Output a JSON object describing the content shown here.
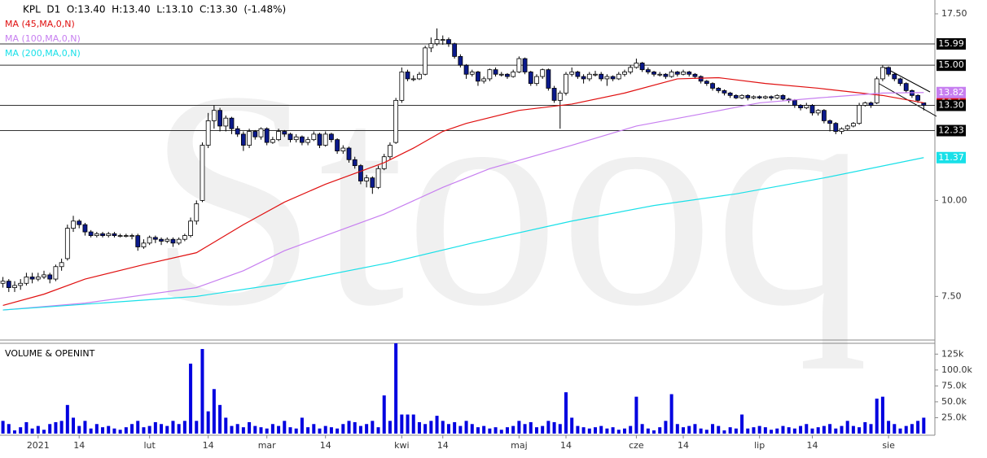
{
  "chart_data": [
    {
      "type": "candlestick",
      "title": "KPL  D1  O:13.40  H:13.40  L:13.10  C:13.30  (-1.48%)",
      "watermark": "Stooq",
      "log_scale": true,
      "color_up": "#ffffff",
      "color_down": "#0b1a8c",
      "color_outline": "#000000",
      "ylim": [
        6.58,
        18.24
      ],
      "yticks": [
        {
          "value": 7.5,
          "label": "7.50"
        },
        {
          "value": 10,
          "label": "10.00"
        },
        {
          "value": 17.5,
          "label": "17.50"
        }
      ],
      "levels": [
        15.99,
        {
          "value": 15,
          "label": "15.00"
        },
        {
          "value": 13.3,
          "label": "13.30"
        },
        12.33
      ],
      "categories": [
        null,
        null,
        null,
        null,
        null,
        null,
        "2021",
        null,
        null,
        null,
        null,
        null,
        null,
        "14",
        null,
        null,
        null,
        null,
        null,
        null,
        null,
        null,
        null,
        null,
        null,
        "lut",
        null,
        null,
        null,
        null,
        null,
        null,
        null,
        null,
        null,
        "14",
        null,
        null,
        null,
        null,
        null,
        null,
        null,
        null,
        null,
        "mar",
        null,
        null,
        null,
        null,
        null,
        null,
        null,
        null,
        null,
        "14",
        null,
        null,
        null,
        null,
        null,
        null,
        null,
        null,
        null,
        null,
        null,
        null,
        "kwi",
        null,
        null,
        null,
        null,
        null,
        null,
        "14",
        null,
        null,
        null,
        null,
        null,
        null,
        null,
        null,
        null,
        null,
        null,
        null,
        "maj",
        null,
        null,
        null,
        null,
        null,
        null,
        null,
        "14",
        null,
        null,
        null,
        null,
        null,
        null,
        null,
        null,
        null,
        null,
        null,
        "cze",
        null,
        null,
        null,
        null,
        null,
        null,
        null,
        "14",
        null,
        null,
        null,
        null,
        null,
        null,
        null,
        null,
        null,
        null,
        null,
        null,
        "lip",
        null,
        null,
        null,
        null,
        null,
        null,
        null,
        null,
        "14",
        null,
        null,
        null,
        null,
        null,
        null,
        null,
        null,
        null,
        null,
        null,
        null,
        "sie",
        null,
        null,
        null,
        null,
        null,
        null
      ],
      "open": [
        7.8,
        7.85,
        7.7,
        7.75,
        7.8,
        7.95,
        7.9,
        7.95,
        8,
        7.9,
        8.2,
        8.4,
        9.2,
        9.4,
        9.3,
        9.1,
        9,
        9.05,
        9,
        9.05,
        9,
        9,
        9,
        9,
        8.7,
        8.8,
        8.95,
        8.9,
        8.85,
        8.9,
        8.8,
        8.9,
        9,
        9.4,
        10,
        11.8,
        12.7,
        13.1,
        12.5,
        12.8,
        12.4,
        12.2,
        11.8,
        12.3,
        12.1,
        12.4,
        11.9,
        12,
        12.3,
        12.2,
        12,
        12.1,
        11.9,
        12,
        12.2,
        11.8,
        12.2,
        12,
        11.6,
        11.7,
        11.3,
        11.1,
        10.6,
        10.7,
        10.4,
        11,
        11.4,
        11.9,
        13.5,
        14.7,
        14.4,
        14.4,
        14.6,
        15.8,
        16,
        16.2,
        16.2,
        16,
        15.4,
        15,
        14.6,
        14.7,
        14.3,
        14.4,
        14.8,
        14.6,
        14.6,
        14.5,
        14.7,
        15.3,
        14.7,
        14.2,
        14.5,
        14.8,
        14,
        13.5,
        13.8,
        14.6,
        14.7,
        14.5,
        14.4,
        14.6,
        14.6,
        14.4,
        14.5,
        14.4,
        14.6,
        14.7,
        14.9,
        15.1,
        14.8,
        14.7,
        14.6,
        14.6,
        14.5,
        14.7,
        14.6,
        14.7,
        14.6,
        14.5,
        14.3,
        14.2,
        14,
        13.9,
        13.8,
        13.7,
        13.6,
        13.7,
        13.6,
        13.65,
        13.6,
        13.65,
        13.6,
        13.7,
        13.55,
        13.5,
        13.3,
        13.2,
        13.3,
        13,
        13.1,
        12.7,
        12.6,
        12.3,
        12.4,
        12.5,
        12.6,
        13.3,
        13.4,
        13.4,
        14.4,
        14.9,
        14.6,
        14.4,
        14.2,
        13.9,
        13.7,
        13.4
      ],
      "high": [
        7.95,
        7.9,
        7.85,
        7.9,
        8.05,
        8.05,
        8.05,
        8.1,
        8.05,
        8.25,
        8.4,
        9.3,
        9.55,
        9.45,
        9.35,
        9.15,
        9.1,
        9.1,
        9.1,
        9.1,
        9.05,
        9.05,
        9.05,
        9.05,
        8.9,
        9,
        9,
        8.95,
        8.95,
        8.95,
        8.95,
        9.05,
        9.5,
        10,
        11.9,
        13,
        13.3,
        13.2,
        12.9,
        12.85,
        12.5,
        12.3,
        12.4,
        12.35,
        12.45,
        12.45,
        12.1,
        12.4,
        12.35,
        12.25,
        12.2,
        12.15,
        12.1,
        12.3,
        12.25,
        12.3,
        12.25,
        12.05,
        11.8,
        11.75,
        11.4,
        11.15,
        10.8,
        10.75,
        11.1,
        11.5,
        11.9,
        13.6,
        14.9,
        14.8,
        14.55,
        14.7,
        15.9,
        16.3,
        16.75,
        16.4,
        16.3,
        16.05,
        15.5,
        15.05,
        14.8,
        14.75,
        14.5,
        14.85,
        14.9,
        14.7,
        14.65,
        14.8,
        15.4,
        15.35,
        14.75,
        14.6,
        14.85,
        14.85,
        14.1,
        13.9,
        14.7,
        14.9,
        14.75,
        14.6,
        14.7,
        14.75,
        14.7,
        14.6,
        14.55,
        14.7,
        14.8,
        15,
        15.3,
        15.15,
        14.9,
        14.75,
        14.7,
        14.65,
        14.8,
        14.75,
        14.8,
        14.75,
        14.65,
        14.55,
        14.35,
        14.25,
        14.05,
        13.95,
        13.85,
        13.75,
        13.75,
        13.75,
        13.7,
        13.7,
        13.7,
        13.7,
        13.75,
        13.75,
        13.6,
        13.55,
        13.35,
        13.4,
        13.35,
        13.15,
        13.15,
        12.75,
        12.65,
        12.45,
        12.55,
        12.65,
        13.4,
        13.45,
        13.45,
        14.5,
        15,
        14.95,
        14.65,
        14.45,
        14.25,
        13.95,
        13.75,
        13.4
      ],
      "low": [
        7.7,
        7.6,
        7.6,
        7.65,
        7.75,
        7.8,
        7.85,
        7.9,
        7.8,
        7.85,
        8.1,
        8.35,
        9.1,
        9.2,
        9,
        8.95,
        8.95,
        8.95,
        8.95,
        8.95,
        8.95,
        8.95,
        8.9,
        8.6,
        8.65,
        8.75,
        8.8,
        8.75,
        8.8,
        8.7,
        8.75,
        8.85,
        8.95,
        9.3,
        9.95,
        11.7,
        12.4,
        12.3,
        12.3,
        12.2,
        12.1,
        11.6,
        11.7,
        12,
        12,
        11.8,
        11.85,
        11.95,
        12.1,
        11.9,
        11.9,
        11.8,
        11.8,
        11.95,
        11.7,
        11.75,
        11.9,
        11.5,
        11.5,
        11.2,
        11,
        10.5,
        10.4,
        10.2,
        10.35,
        10.95,
        11.3,
        11.85,
        13.4,
        14.3,
        14.3,
        14.35,
        14.55,
        15.6,
        15.9,
        15.95,
        15.85,
        15.3,
        14.9,
        14.4,
        14.5,
        14.1,
        14.2,
        14.3,
        14.5,
        14.5,
        14.4,
        14.45,
        14.65,
        14.6,
        14.1,
        14.1,
        14.4,
        13.9,
        13.4,
        12.4,
        13.7,
        14.5,
        14.4,
        14.2,
        14.3,
        14.5,
        14.3,
        14.1,
        14.3,
        14.35,
        14.5,
        14.6,
        14.85,
        14.7,
        14.6,
        14.5,
        14.5,
        14.4,
        14.45,
        14.5,
        14.55,
        14.5,
        14.4,
        14.2,
        14.1,
        13.9,
        13.8,
        13.7,
        13.6,
        13.55,
        13.55,
        13.5,
        13.55,
        13.55,
        13.55,
        13.5,
        13.55,
        13.5,
        13.4,
        13.2,
        13.1,
        13.15,
        12.9,
        12.9,
        12.6,
        12.3,
        12.2,
        12.2,
        12.35,
        12.45,
        12.55,
        13.25,
        13.2,
        13.35,
        14.3,
        14.5,
        14.3,
        14.1,
        13.8,
        13.6,
        13.4,
        13.1
      ],
      "close": [
        7.85,
        7.7,
        7.75,
        7.8,
        7.95,
        7.9,
        7.95,
        8,
        7.9,
        8.2,
        8.3,
        9.2,
        9.4,
        9.3,
        9.1,
        9,
        9.05,
        9,
        9.05,
        9,
        9,
        9,
        9,
        8.7,
        8.8,
        8.95,
        8.9,
        8.85,
        8.9,
        8.8,
        8.9,
        9,
        9.4,
        9.9,
        11.8,
        12.7,
        13.1,
        12.5,
        12.8,
        12.4,
        12.2,
        11.8,
        12.3,
        12.1,
        12.4,
        11.9,
        12,
        12.3,
        12.2,
        12,
        12.1,
        11.9,
        12,
        12.2,
        11.8,
        12.2,
        12,
        11.6,
        11.7,
        11.3,
        11.1,
        10.6,
        10.7,
        10.4,
        11,
        11.4,
        11.8,
        13.5,
        14.7,
        14.4,
        14.4,
        14.6,
        15.8,
        16,
        16.2,
        16.2,
        16,
        15.4,
        15,
        14.6,
        14.7,
        14.3,
        14.4,
        14.8,
        14.6,
        14.6,
        14.5,
        14.7,
        15.3,
        14.7,
        14.2,
        14.5,
        14.8,
        14,
        13.5,
        13.8,
        14.6,
        14.7,
        14.5,
        14.4,
        14.6,
        14.6,
        14.4,
        14.5,
        14.4,
        14.6,
        14.7,
        14.9,
        15.1,
        14.8,
        14.7,
        14.6,
        14.6,
        14.5,
        14.7,
        14.6,
        14.7,
        14.6,
        14.5,
        14.3,
        14.2,
        14,
        13.9,
        13.8,
        13.7,
        13.6,
        13.7,
        13.6,
        13.65,
        13.6,
        13.65,
        13.6,
        13.7,
        13.55,
        13.5,
        13.3,
        13.2,
        13.3,
        13,
        13.1,
        12.7,
        12.6,
        12.3,
        12.4,
        12.5,
        12.6,
        13.3,
        13.4,
        13.3,
        14.4,
        14.9,
        14.6,
        14.4,
        14.2,
        13.9,
        13.7,
        13.5,
        13.3
      ],
      "series": [
        {
          "name": "MA (45,MA,0,N)",
          "color": "#e01010",
          "x": [
            0,
            7,
            14,
            24,
            33,
            41,
            48,
            55,
            65,
            70,
            75,
            79,
            88,
            97,
            106,
            115,
            122,
            130,
            139,
            150,
            157
          ],
          "values": [
            7.3,
            7.55,
            7.9,
            8.25,
            8.55,
            9.3,
            9.95,
            10.5,
            11.2,
            11.7,
            12.3,
            12.6,
            13.1,
            13.35,
            13.8,
            14.4,
            14.45,
            14.2,
            14,
            13.7,
            13.4
          ]
        },
        {
          "name": "MA (100,MA,0,N)",
          "color": "#c77ff0",
          "x": [
            0,
            14,
            33,
            41,
            48,
            55,
            65,
            75,
            83,
            97,
            108,
            120,
            129,
            139,
            150,
            157
          ],
          "values": [
            7.2,
            7.35,
            7.7,
            8.1,
            8.6,
            9,
            9.6,
            10.4,
            11,
            11.8,
            12.5,
            13,
            13.4,
            13.6,
            13.8,
            13.82
          ]
        },
        {
          "name": "MA (200,MA,0,N)",
          "color": "#18e0e8",
          "x": [
            0,
            33,
            48,
            66,
            80,
            97,
            111,
            125,
            140,
            157
          ],
          "values": [
            7.2,
            7.5,
            7.8,
            8.3,
            8.8,
            9.4,
            9.85,
            10.2,
            10.7,
            11.37
          ]
        }
      ]
    },
    {
      "type": "bar",
      "title": "VOLUME & OPENINT",
      "color": "#0000e0",
      "ylim": [
        0,
        142000
      ],
      "yticks": [
        {
          "value": 25000,
          "label": "25.0k"
        },
        {
          "value": 50000,
          "label": "50.0k"
        },
        {
          "value": 75000,
          "label": "75.0k"
        },
        {
          "value": 100000,
          "label": "100.0k"
        },
        {
          "value": 125000,
          "label": "125k"
        }
      ],
      "values": [
        20000,
        15000,
        5000,
        10000,
        18000,
        8000,
        12000,
        6000,
        15000,
        18000,
        20000,
        45000,
        25000,
        12000,
        20000,
        8000,
        15000,
        10000,
        12000,
        8000,
        6000,
        10000,
        15000,
        20000,
        10000,
        12000,
        18000,
        15000,
        12000,
        20000,
        15000,
        20000,
        110000,
        20000,
        133000,
        35000,
        70000,
        45000,
        25000,
        12000,
        15000,
        10000,
        18000,
        12000,
        10000,
        8000,
        15000,
        12000,
        20000,
        10000,
        8000,
        25000,
        10000,
        15000,
        8000,
        12000,
        10000,
        8000,
        15000,
        20000,
        18000,
        12000,
        15000,
        20000,
        10000,
        60000,
        20000,
        142000,
        30000,
        30000,
        30000,
        18000,
        15000,
        20000,
        28000,
        20000,
        15000,
        18000,
        12000,
        20000,
        15000,
        10000,
        12000,
        8000,
        10000,
        6000,
        10000,
        12000,
        20000,
        15000,
        18000,
        10000,
        12000,
        20000,
        18000,
        15000,
        65000,
        25000,
        12000,
        10000,
        8000,
        10000,
        12000,
        8000,
        10000,
        6000,
        8000,
        12000,
        58000,
        15000,
        8000,
        5000,
        10000,
        20000,
        62000,
        15000,
        10000,
        12000,
        15000,
        8000,
        6000,
        15000,
        12000,
        5000,
        10000,
        8000,
        30000,
        8000,
        10000,
        12000,
        10000,
        6000,
        8000,
        12000,
        10000,
        8000,
        12000,
        15000,
        8000,
        10000,
        12000,
        15000,
        8000,
        12000,
        20000,
        12000,
        10000,
        18000,
        15000,
        55000,
        58000,
        20000,
        15000,
        8000,
        12000,
        15000,
        20000,
        25000
      ]
    }
  ]
}
